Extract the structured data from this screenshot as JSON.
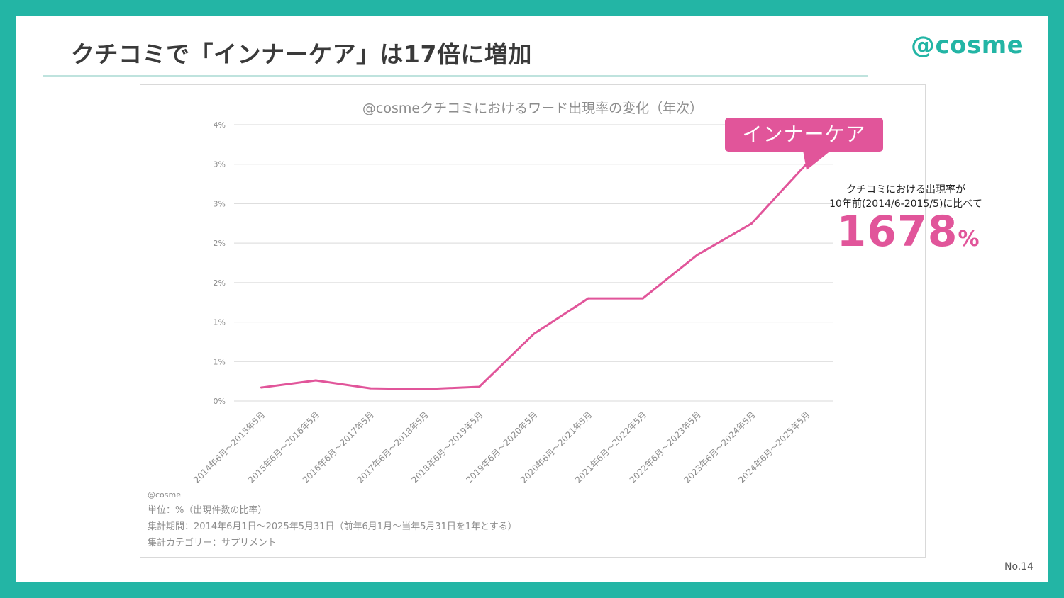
{
  "slide": {
    "title": "クチコミで「インナーケア」は17倍に増加",
    "logo": "@cosme",
    "page_number": "No.14"
  },
  "chart_data": {
    "type": "line",
    "title": "@cosmeクチコミにおけるワード出現率の変化（年次）",
    "categories": [
      "2014年6月～2015年5月",
      "2015年6月～2016年5月",
      "2016年6月～2017年5月",
      "2017年6月～2018年5月",
      "2018年6月～2019年5月",
      "2019年6月～2020年5月",
      "2020年6月～2021年5月",
      "2021年6月～2022年5月",
      "2022年6月～2023年5月",
      "2023年6月～2024年5月",
      "2024年6月～2025年5月"
    ],
    "series": [
      {
        "name": "インナーケア",
        "color": "#e1559a",
        "values": [
          0.17,
          0.26,
          0.16,
          0.15,
          0.18,
          0.85,
          1.3,
          1.3,
          1.85,
          2.25,
          3.0
        ]
      }
    ],
    "ylim": [
      0,
      3.5
    ],
    "y_ticks": [
      0,
      0.5,
      1.0,
      1.5,
      2.0,
      2.5,
      3.0,
      3.5
    ],
    "y_tick_labels": [
      "0%",
      "1%",
      "1%",
      "2%",
      "2%",
      "3%",
      "3%",
      "4%"
    ],
    "grid": true,
    "xlabel": "",
    "ylabel": ""
  },
  "chart_notes": {
    "source": "@cosme",
    "unit": "単位：%（出現件数の比率）",
    "period": "集計期間：2014年6月1日～2025年5月31日（前年6月1月～当年5月31日を1年とする）",
    "category": "集計カテゴリー：サプリメント"
  },
  "callout": {
    "label": "インナーケア",
    "color": "#e1559a"
  },
  "stat": {
    "desc_line1": "クチコミにおける出現率が",
    "desc_line2": "10年前(2014/6-2015/5)に比べて",
    "value": "1678",
    "unit": "%"
  }
}
